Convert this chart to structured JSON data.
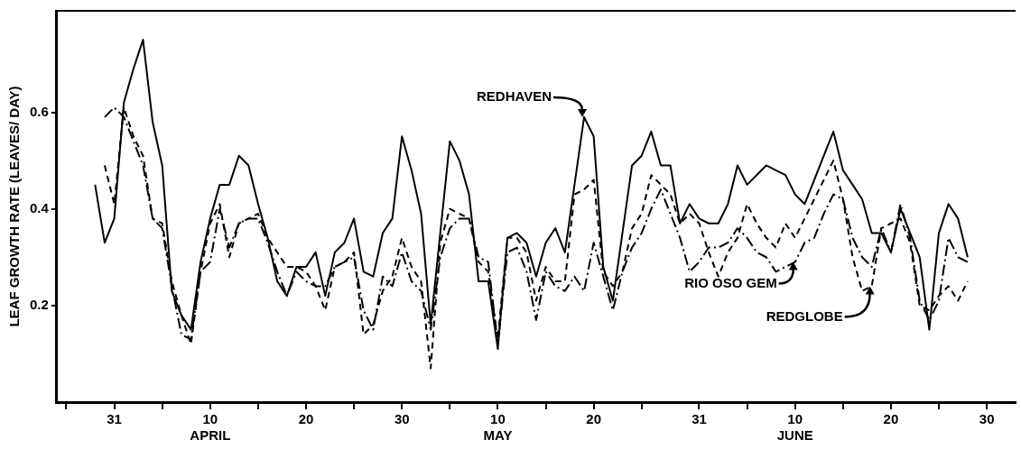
{
  "chart_data": {
    "type": "line",
    "ylabel": "LEAF GROWTH RATE (LEAVES/ DAY)",
    "x": [
      "--03-29",
      "--03-30",
      "--03-31",
      "--04-01",
      "--04-02",
      "--04-03",
      "--04-04",
      "--04-05",
      "--04-06",
      "--04-07",
      "--04-08",
      "--04-09",
      "--04-10",
      "--04-11",
      "--04-12",
      "--04-13",
      "--04-14",
      "--04-15",
      "--04-16",
      "--04-17",
      "--04-18",
      "--04-19",
      "--04-20",
      "--04-21",
      "--04-22",
      "--04-23",
      "--04-24",
      "--04-25",
      "--04-26",
      "--04-27",
      "--04-28",
      "--04-29",
      "--04-30",
      "--05-01",
      "--05-02",
      "--05-03",
      "--05-04",
      "--05-05",
      "--05-06",
      "--05-07",
      "--05-08",
      "--05-09",
      "--05-10",
      "--05-11",
      "--05-12",
      "--05-13",
      "--05-14",
      "--05-15",
      "--05-16",
      "--05-17",
      "--05-18",
      "--05-19",
      "--05-20",
      "--05-21",
      "--05-22",
      "--05-23",
      "--05-24",
      "--05-25",
      "--05-26",
      "--05-27",
      "--05-28",
      "--05-29",
      "--05-30",
      "--05-31",
      "--06-01",
      "--06-02",
      "--06-03",
      "--06-04",
      "--06-05",
      "--06-06",
      "--06-07",
      "--06-08",
      "--06-09",
      "--06-10",
      "--06-11",
      "--06-12",
      "--06-13",
      "--06-14",
      "--06-15",
      "--06-16",
      "--06-17",
      "--06-18",
      "--06-19",
      "--06-20",
      "--06-21",
      "--06-22",
      "--06-23",
      "--06-24",
      "--06-25",
      "--06-26",
      "--06-27",
      "--06-28"
    ],
    "series": [
      {
        "color": "#000000",
        "line_style": "solid",
        "values": [
          0.45,
          0.33,
          0.38,
          0.62,
          0.69,
          0.75,
          0.58,
          0.49,
          0.23,
          0.18,
          0.15,
          0.29,
          0.38,
          0.45,
          0.45,
          0.51,
          0.49,
          0.41,
          0.34,
          0.25,
          0.22,
          0.28,
          0.28,
          0.31,
          0.22,
          0.31,
          0.33,
          0.38,
          0.27,
          0.26,
          0.35,
          0.38,
          0.55,
          0.48,
          0.39,
          0.16,
          0.35,
          0.54,
          0.5,
          0.43,
          0.25,
          0.25,
          0.11,
          0.34,
          0.35,
          0.33,
          0.26,
          0.33,
          0.36,
          0.31,
          0.45,
          0.59,
          0.55,
          0.28,
          0.21,
          0.35,
          0.49,
          0.51,
          0.56,
          0.49,
          0.49,
          0.37,
          0.41,
          0.38,
          0.37,
          0.37,
          0.41,
          0.49,
          0.45,
          0.47,
          0.49,
          0.48,
          0.47,
          0.43,
          0.41,
          0.46,
          0.51,
          0.56,
          0.48,
          0.45,
          0.42,
          0.35,
          0.35,
          0.31,
          0.4,
          0.35,
          0.3,
          0.15,
          0.35,
          0.41,
          0.38,
          0.3
        ]
      },
      {
        "color": "#000000",
        "line_style": "dashdot",
        "values": [
          null,
          0.59,
          0.61,
          0.59,
          0.54,
          0.49,
          0.38,
          0.36,
          0.24,
          0.14,
          0.13,
          0.27,
          0.29,
          0.4,
          0.32,
          0.37,
          0.38,
          0.38,
          0.33,
          0.27,
          0.22,
          0.27,
          0.25,
          0.24,
          0.24,
          0.28,
          0.29,
          0.3,
          0.19,
          0.15,
          0.26,
          0.24,
          0.31,
          0.25,
          0.23,
          0.15,
          0.3,
          0.36,
          0.38,
          0.38,
          0.3,
          0.29,
          0.12,
          0.31,
          0.32,
          0.27,
          0.17,
          0.27,
          0.24,
          0.23,
          0.26,
          0.23,
          0.33,
          0.26,
          0.19,
          0.27,
          0.32,
          0.35,
          0.4,
          0.44,
          0.39,
          0.34,
          0.27,
          0.29,
          0.32,
          0.32,
          0.33,
          0.36,
          0.34,
          0.31,
          0.3,
          0.27,
          0.28,
          0.29,
          0.33,
          0.34,
          0.39,
          0.43,
          0.42,
          0.34,
          0.3,
          0.28,
          0.36,
          0.31,
          0.41,
          0.34,
          0.21,
          0.17,
          0.21,
          0.34,
          0.3,
          0.29
        ]
      },
      {
        "color": "#000000",
        "line_style": "dashed",
        "values": [
          null,
          0.49,
          0.41,
          0.61,
          0.55,
          0.51,
          0.38,
          0.37,
          0.25,
          0.18,
          0.12,
          0.27,
          0.37,
          0.41,
          0.3,
          0.37,
          0.38,
          0.39,
          0.34,
          0.31,
          0.28,
          0.28,
          0.27,
          0.24,
          0.19,
          0.28,
          0.29,
          0.31,
          0.14,
          0.16,
          0.23,
          0.26,
          0.34,
          0.28,
          0.25,
          0.07,
          0.33,
          0.4,
          0.39,
          0.38,
          0.29,
          0.27,
          0.13,
          0.34,
          0.34,
          0.31,
          0.21,
          0.28,
          0.25,
          0.25,
          0.43,
          0.44,
          0.46,
          0.27,
          0.24,
          0.27,
          0.36,
          0.39,
          0.47,
          0.45,
          0.43,
          0.37,
          0.39,
          0.37,
          0.31,
          0.26,
          0.31,
          0.34,
          0.41,
          0.37,
          0.34,
          0.32,
          0.37,
          0.34,
          0.38,
          0.42,
          0.46,
          0.5,
          0.42,
          0.3,
          0.23,
          0.24,
          0.36,
          0.37,
          0.38,
          0.33,
          0.2,
          0.19,
          0.22,
          0.24,
          0.21,
          0.25
        ]
      }
    ],
    "xlim": [
      "--03-25",
      "--07-03"
    ],
    "xticks": [
      {
        "value": "--03-26",
        "label": null
      },
      {
        "value": "--03-31",
        "label": "31"
      },
      {
        "value": "--04-05",
        "label": null
      },
      {
        "value": "--04-10",
        "label": "10\nAPRIL"
      },
      {
        "value": "--04-15",
        "label": null
      },
      {
        "value": "--04-20",
        "label": "20"
      },
      {
        "value": "--04-25",
        "label": null
      },
      {
        "value": "--04-30",
        "label": "30"
      },
      {
        "value": "--05-05",
        "label": null
      },
      {
        "value": "--05-10",
        "label": "10\nMAY"
      },
      {
        "value": "--05-15",
        "label": null
      },
      {
        "value": "--05-20",
        "label": "20"
      },
      {
        "value": "--05-25",
        "label": null
      },
      {
        "value": "--05-31",
        "label": "31"
      },
      {
        "value": "--06-05",
        "label": null
      },
      {
        "value": "--06-10",
        "label": "10\nJUNE"
      },
      {
        "value": "--06-15",
        "label": null
      },
      {
        "value": "--06-20",
        "label": "20"
      },
      {
        "value": "--06-25",
        "label": null
      },
      {
        "value": "--06-30",
        "label": "30"
      }
    ],
    "ylim": [
      0,
      0.81
    ],
    "yticks": [
      0.2,
      0.4,
      0.6
    ],
    "annotations": [
      {
        "text": "REDHAVEN",
        "x": "--05-19",
        "y": 0.59
      },
      {
        "text": "RIO OSO GEM",
        "x": "--06-10",
        "y": 0.29
      },
      {
        "text": "REDGLOBE",
        "x": "--06-18",
        "y": 0.24
      }
    ]
  }
}
